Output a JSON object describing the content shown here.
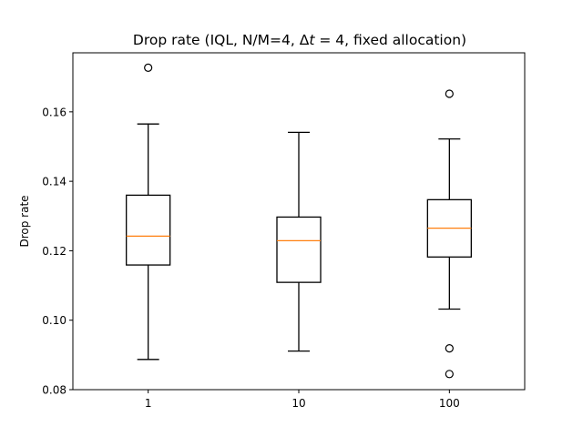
{
  "chart_data": {
    "type": "box",
    "title": "Drop rate (IQL, N/M=4, Δt = 4, fixed allocation)",
    "title_parts": [
      "Drop rate (IQL, N/M=4, ",
      "Δ",
      "t",
      " = 4, fixed allocation)"
    ],
    "xlabel": "",
    "ylabel": "Drop rate",
    "ylim": [
      0.08,
      0.177
    ],
    "yticks": [
      0.08,
      0.1,
      0.12,
      0.14,
      0.16
    ],
    "ytick_labels": [
      "0.08",
      "0.10",
      "0.12",
      "0.14",
      "0.16"
    ],
    "categories": [
      "1",
      "10",
      "100"
    ],
    "boxes": [
      {
        "category": "1",
        "whisker_low": 0.0887,
        "q1": 0.1159,
        "median": 0.1242,
        "q3": 0.136,
        "whisker_high": 0.1565,
        "outliers": [
          0.1727
        ]
      },
      {
        "category": "10",
        "whisker_low": 0.0911,
        "q1": 0.1109,
        "median": 0.1229,
        "q3": 0.1297,
        "whisker_high": 0.1541,
        "outliers": []
      },
      {
        "category": "100",
        "whisker_low": 0.1032,
        "q1": 0.1182,
        "median": 0.1265,
        "q3": 0.1347,
        "whisker_high": 0.1522,
        "outliers": [
          0.1652,
          0.0919,
          0.0845
        ]
      }
    ],
    "grid": false,
    "legend": "none"
  },
  "colors": {
    "box_edge": "#000000",
    "median": "#ff7f0e",
    "background": "#ffffff"
  }
}
